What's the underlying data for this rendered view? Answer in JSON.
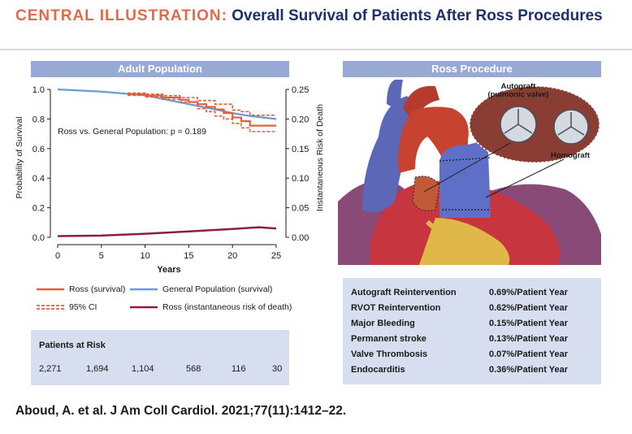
{
  "header": {
    "label": "CENTRAL ILLUSTRATION:",
    "title": "Overall Survival of Patients After Ross Procedures"
  },
  "left_panel": {
    "title": "Adult Population"
  },
  "right_panel": {
    "title": "Ross Procedure"
  },
  "chart_data": {
    "type": "line",
    "xlabel": "Years",
    "ylabel_left": "Probability of Survival",
    "ylabel_right": "Instantaneous Risk of Death",
    "xlim": [
      0,
      25
    ],
    "ylim_left": [
      0,
      1
    ],
    "ylim_right": [
      0,
      0.25
    ],
    "x_ticks": [
      "0",
      "5",
      "10",
      "15",
      "20",
      "25"
    ],
    "y_ticks_left": [
      "0.0",
      "0.2",
      "0.4",
      "0.6",
      "0.8",
      "1.0"
    ],
    "y_ticks_right": [
      "0.00",
      "0.05",
      "0.10",
      "0.15",
      "0.20",
      "0.25"
    ],
    "annotation": "Ross vs. General Population: p = 0.189",
    "colors": {
      "ross": "#e0613e",
      "general": "#6a9ad4",
      "risk": "#8e1f3b"
    },
    "series": [
      {
        "name": "Ross (survival)",
        "axis": "left",
        "x": [
          8,
          10,
          12,
          14,
          15,
          16,
          17,
          18,
          19,
          20,
          21,
          22,
          25
        ],
        "y": [
          0.968,
          0.958,
          0.945,
          0.93,
          0.915,
          0.9,
          0.882,
          0.865,
          0.84,
          0.81,
          0.785,
          0.755,
          0.755
        ]
      },
      {
        "name": "Ross 95% CI upper",
        "axis": "left",
        "x": [
          8,
          10,
          12,
          14,
          16,
          18,
          20,
          21,
          22,
          25
        ],
        "y": [
          0.975,
          0.968,
          0.958,
          0.945,
          0.925,
          0.9,
          0.86,
          0.85,
          0.825,
          0.825
        ]
      },
      {
        "name": "Ross 95% CI lower",
        "axis": "left",
        "x": [
          8,
          10,
          12,
          14,
          16,
          17,
          18,
          19,
          20,
          21,
          22,
          25
        ],
        "y": [
          0.96,
          0.948,
          0.932,
          0.915,
          0.87,
          0.85,
          0.82,
          0.8,
          0.77,
          0.74,
          0.715,
          0.715
        ]
      },
      {
        "name": "General Population (survival)",
        "axis": "left",
        "x": [
          0,
          5,
          10,
          15,
          18,
          20,
          22,
          25
        ],
        "y": [
          1.0,
          0.985,
          0.96,
          0.9,
          0.865,
          0.84,
          0.82,
          0.8
        ]
      },
      {
        "name": "Ross (instantaneous risk of death)",
        "axis": "right",
        "x": [
          0,
          5,
          10,
          15,
          20,
          23,
          25
        ],
        "y": [
          0.002,
          0.003,
          0.006,
          0.01,
          0.014,
          0.017,
          0.015
        ]
      }
    ]
  },
  "legend": {
    "ross_survival": "Ross (survival)",
    "general_survival": "General Population (survival)",
    "ci": "95% CI",
    "ross_risk": "Ross (instantaneous risk of death)"
  },
  "risk_table": {
    "title": "Patients at Risk",
    "values": [
      "2,271",
      "1,694",
      "1,104",
      "568",
      "116",
      "30"
    ]
  },
  "illustration": {
    "autograft_label": "Autograft",
    "autograft_sublabel": "(pulmonic valve)",
    "homograft_label": "Homograft"
  },
  "stats": [
    {
      "label": "Autograft Reintervention",
      "value": "0.69%/Patient Year"
    },
    {
      "label": "RVOT Reintervention",
      "value": "0.62%/Patient Year"
    },
    {
      "label": "Major Bleeding",
      "value": "0.15%/Patient Year"
    },
    {
      "label": "Permanent stroke",
      "value": "0.13%/Patient Year"
    },
    {
      "label": "Valve Thrombosis",
      "value": "0.07%/Patient Year"
    },
    {
      "label": "Endocarditis",
      "value": "0.36%/Patient Year"
    }
  ],
  "citation": "Aboud, A. et al. J Am Coll Cardiol. 2021;77(11):1412–22."
}
